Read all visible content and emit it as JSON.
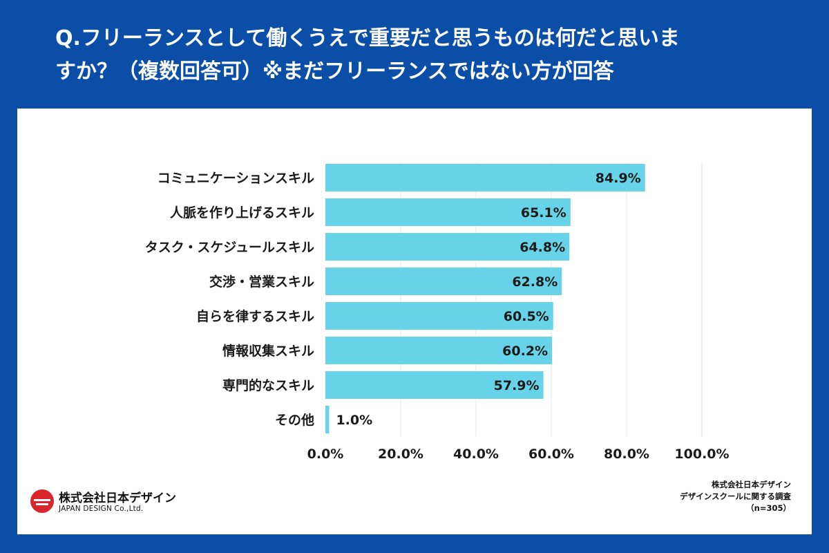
{
  "title": {
    "line1": "Q.フリーランスとして働くうえで重要だと思うものは何だと思いま",
    "line2": "すか？（複数回答可）※まだフリーランスではない方が回答"
  },
  "chart_data": {
    "type": "bar",
    "orientation": "horizontal",
    "categories": [
      "コミュニケーションスキル",
      "人脈を作り上げるスキル",
      "タスク・スケジュールスキル",
      "交渉・営業スキル",
      "自らを律するスキル",
      "情報収集スキル",
      "専門的なスキル",
      "その他"
    ],
    "values": [
      84.9,
      65.1,
      64.8,
      62.8,
      60.5,
      60.2,
      57.9,
      1.0
    ],
    "value_labels": [
      "84.9%",
      "65.1%",
      "64.8%",
      "62.8%",
      "60.5%",
      "60.2%",
      "57.9%",
      "1.0%"
    ],
    "xlim": [
      0,
      100
    ],
    "x_ticks": [
      0,
      20,
      40,
      60,
      80,
      100
    ],
    "x_tick_labels": [
      "0.0%",
      "20.0%",
      "40.0%",
      "60.0%",
      "80.0%",
      "100.0%"
    ],
    "bar_color": "#66d3e8",
    "grid": true,
    "title": "",
    "xlabel": "",
    "ylabel": ""
  },
  "logo": {
    "name": "株式会社日本デザイン",
    "subtitle": "JAPAN DESIGN Co.,Ltd.",
    "mark_color": "#d9262c"
  },
  "source": {
    "line1": "株式会社日本デザイン",
    "line2": "デザインスクールに関する調査",
    "line3": "（n=305）"
  }
}
